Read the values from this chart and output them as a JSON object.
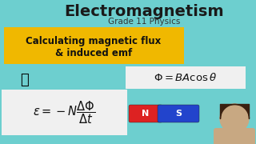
{
  "bg_color": "#6dcfcf",
  "title": "Electromagnetism",
  "subtitle": "Grade 11 Physics",
  "banner_color": "#f0b800",
  "banner_text_line1": "Calculating magnetic flux",
  "banner_text_line2": "& induced emf",
  "banner_text_color": "#111111",
  "formula1_box_color": "#f0f0f0",
  "formula1": "$\\Phi = BA\\cos\\theta$",
  "formula2_box_color": "#f0f0f0",
  "formula2": "$\\varepsilon = -N\\dfrac{\\Delta\\Phi}{\\Delta t}$",
  "magnet_n_color": "#dd2222",
  "magnet_s_color": "#2244cc",
  "magnet_text_color": "#ffffff",
  "title_color": "#1a1a1a",
  "subtitle_color": "#333333",
  "formula_color": "#111111",
  "person_skin": "#c8a882",
  "person_hair": "#3a2010"
}
